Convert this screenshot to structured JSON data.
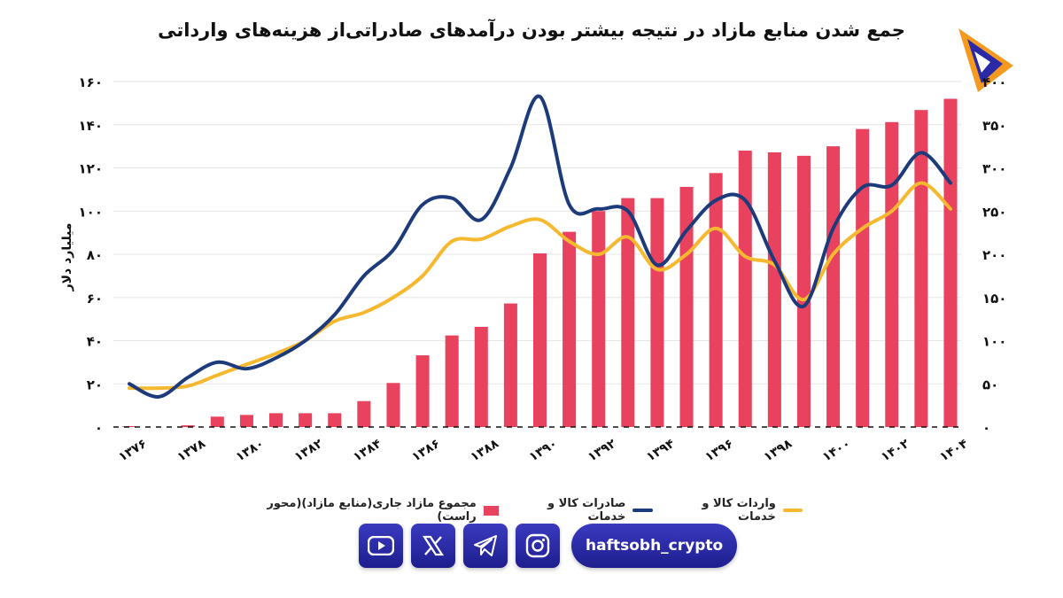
{
  "title": "جمع شدن منابع مازاد در نتیجه بیشتر بودن درآمدهای صادراتی‌از هزینه‌های وارداتی",
  "social": {
    "icons": [
      "youtube-icon",
      "x-icon",
      "telegram-icon",
      "instagram-icon"
    ],
    "handle": "haftsobh_crypto"
  },
  "colors": {
    "bars": "#e8425f",
    "exports": "#1d3a7a",
    "imports": "#f5b82e",
    "brand": "#2a2aa8"
  },
  "chart_data": {
    "type": "bar",
    "ylabel": "میلیارد دلار",
    "ylim": [
      0,
      160
    ],
    "y2lim": [
      0,
      400
    ],
    "y_ticks": [
      "۰",
      "۲۰",
      "۴۰",
      "۶۰",
      "۸۰",
      "۱۰۰",
      "۱۲۰",
      "۱۴۰",
      "۱۶۰"
    ],
    "y2_ticks": [
      "۰",
      "۵۰",
      "۱۰۰",
      "۱۵۰",
      "۲۰۰",
      "۲۵۰",
      "۳۰۰",
      "۳۵۰",
      "۴۰۰"
    ],
    "x": [
      "۱۳۷۶",
      "۱۳۷۷",
      "۱۳۷۸",
      "۱۳۷۹",
      "۱۳۸۰",
      "۱۳۸۱",
      "۱۳۸۲",
      "۱۳۸۳",
      "۱۳۸۴",
      "۱۳۸۵",
      "۱۳۸۶",
      "۱۳۸۷",
      "۱۳۸۸",
      "۱۳۸۹",
      "۱۳۹۰",
      "۱۳۹۱",
      "۱۳۹۲",
      "۱۳۹۳",
      "۱۳۹۴",
      "۱۳۹۵",
      "۱۳۹۶",
      "۱۳۹۷",
      "۱۳۹۸",
      "۱۳۹۹",
      "۱۴۰۰",
      "۱۴۰۱",
      "۱۴۰۲",
      "۱۴۰۳",
      "۱۴۰۴"
    ],
    "x_tick_labels": [
      "۱۳۷۶",
      "۱۳۷۸",
      "۱۳۸۰",
      "۱۳۸۲",
      "۱۳۸۴",
      "۱۳۸۶",
      "۱۳۸۸",
      "۱۳۹۰",
      "۱۳۹۲",
      "۱۳۹۴",
      "۱۳۹۶",
      "۱۳۹۸",
      "۱۴۰۰",
      "۱۴۰۲",
      "۱۴۰۴"
    ],
    "legend_position": "bottom",
    "grid": true,
    "series": [
      {
        "name": "مجموع مازاد جاری(منابع مازاد)(محور راست)",
        "kind": "bar",
        "axis": "right",
        "values": [
          1,
          0,
          2,
          12,
          14,
          16,
          16,
          16,
          30,
          51,
          83,
          106,
          116,
          143,
          201,
          226,
          250,
          265,
          265,
          278,
          294,
          320,
          318,
          314,
          325,
          345,
          353,
          367,
          380
        ]
      },
      {
        "name": "صادرات کالا و خدمات",
        "kind": "line",
        "axis": "left",
        "values": [
          20,
          14,
          23,
          30,
          27,
          32,
          40,
          52,
          70,
          82,
          103,
          106,
          96,
          120,
          153,
          103,
          101,
          100,
          75,
          91,
          105,
          105,
          77,
          56,
          92,
          111,
          112,
          127,
          113
        ]
      },
      {
        "name": "واردات کالا و خدمات",
        "kind": "line",
        "axis": "left",
        "values": [
          18,
          18,
          19,
          24,
          29,
          34,
          40,
          49,
          53,
          60,
          70,
          86,
          87,
          93,
          96,
          86,
          80,
          88,
          73,
          80,
          92,
          79,
          75,
          59,
          80,
          92,
          100,
          113,
          101
        ]
      }
    ]
  }
}
